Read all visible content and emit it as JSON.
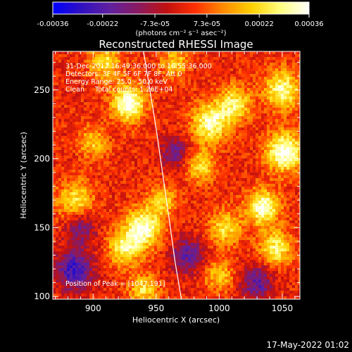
{
  "title": "Reconstructed RHESSI Image",
  "footer_date": "17-May-2022 01:02",
  "colorbar": {
    "ticks": [
      "-0.00036",
      "-0.00022",
      "-7.3e-05",
      "7.3e-05",
      "0.00022",
      "0.00036"
    ],
    "tick_values": [
      -0.00036,
      -0.00022,
      -7.3e-05,
      7.3e-05,
      0.00022,
      0.00036
    ],
    "range": [
      -0.00036,
      0.00036
    ],
    "unit_label": "(photons cm⁻² s⁻¹ asec⁻²)",
    "colors": [
      "#0000ff",
      "#3010c0",
      "#6020a0",
      "#8a1a60",
      "#c01010",
      "#ff3000",
      "#ff8c00",
      "#ffd000",
      "#ffff80",
      "#ffffff"
    ]
  },
  "annotations": {
    "line1": "31-Dec-2012 16:49:36.000 to 16:55:36.000",
    "line2": "Detectors: 3F 4F 5F 6F 7F 8F, Att 0",
    "line3": "Energy Range: 25.0 - 50.0 keV",
    "line4": "Clean     Total counts: 1.26E+04",
    "peak": "Position of Peak = [1047,191]"
  },
  "chart_data": {
    "type": "heatmap",
    "title": "Reconstructed RHESSI Image",
    "xlabel": "Heliocentric X (arcsec)",
    "ylabel": "Heliocentric Y (arcsec)",
    "xlim": [
      868,
      1064
    ],
    "ylim": [
      98,
      278
    ],
    "xticks": [
      900,
      950,
      1000,
      1050
    ],
    "yticks": [
      100,
      150,
      200,
      250
    ],
    "limb_curve": {
      "x": [
        940,
        945,
        950,
        955,
        960,
        965,
        970
      ],
      "y": [
        278,
        250,
        222,
        190,
        158,
        125,
        98
      ]
    },
    "hotspots": [
      {
        "x": 928,
        "y": 240,
        "amp": 1.0,
        "s": 9
      },
      {
        "x": 886,
        "y": 170,
        "amp": 0.6,
        "s": 10
      },
      {
        "x": 940,
        "y": 150,
        "amp": 0.9,
        "s": 10
      },
      {
        "x": 925,
        "y": 135,
        "amp": 0.7,
        "s": 9
      },
      {
        "x": 955,
        "y": 170,
        "amp": 0.5,
        "s": 8
      },
      {
        "x": 910,
        "y": 270,
        "amp": 0.6,
        "s": 9
      },
      {
        "x": 993,
        "y": 226,
        "amp": 0.85,
        "s": 10
      },
      {
        "x": 1012,
        "y": 240,
        "amp": 0.7,
        "s": 9
      },
      {
        "x": 1052,
        "y": 205,
        "amp": 1.0,
        "s": 10
      },
      {
        "x": 1050,
        "y": 250,
        "amp": 0.8,
        "s": 10
      },
      {
        "x": 1035,
        "y": 165,
        "amp": 0.9,
        "s": 9
      },
      {
        "x": 1045,
        "y": 135,
        "amp": 0.7,
        "s": 9
      },
      {
        "x": 1005,
        "y": 150,
        "amp": 0.6,
        "s": 9
      },
      {
        "x": 985,
        "y": 195,
        "amp": 0.6,
        "s": 8
      },
      {
        "x": 1000,
        "y": 115,
        "amp": 0.5,
        "s": 8
      },
      {
        "x": 940,
        "y": 105,
        "amp": 0.6,
        "s": 8
      },
      {
        "x": 900,
        "y": 212,
        "amp": 0.5,
        "s": 8
      },
      {
        "x": 965,
        "y": 270,
        "amp": 0.5,
        "s": 8
      }
    ],
    "coldspots": [
      {
        "x": 885,
        "y": 120,
        "amp": 0.8,
        "s": 10
      },
      {
        "x": 975,
        "y": 130,
        "amp": 0.6,
        "s": 9
      },
      {
        "x": 965,
        "y": 205,
        "amp": 0.5,
        "s": 8
      },
      {
        "x": 1030,
        "y": 110,
        "amp": 0.6,
        "s": 9
      },
      {
        "x": 890,
        "y": 150,
        "amp": 0.5,
        "s": 8
      }
    ],
    "peak": [
      1047,
      191
    ]
  }
}
